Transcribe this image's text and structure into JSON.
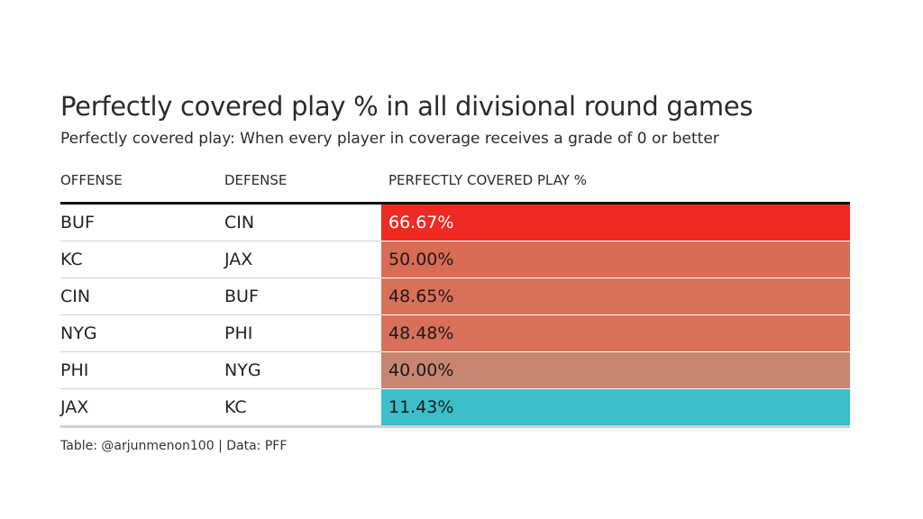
{
  "title": "Perfectly covered play % in all divisional round games",
  "subtitle": "Perfectly covered play: When every player in coverage receives a grade of 0 or better",
  "footer": "Table: @arjunmenon100 | Data: PFF",
  "chart_data": {
    "type": "table",
    "columns": [
      "OFFENSE",
      "DEFENSE",
      "PERFECTLY COVERED PLAY %"
    ],
    "rows": [
      {
        "offense": "BUF",
        "defense": "CIN",
        "pct": "66.67%",
        "value": 66.67,
        "color": "#ee2a22",
        "text_color": "#ffffff"
      },
      {
        "offense": "KC",
        "defense": "JAX",
        "pct": "50.00%",
        "value": 50.0,
        "color": "#d96c55",
        "text_color": "#1a1a1a"
      },
      {
        "offense": "CIN",
        "defense": "BUF",
        "pct": "48.65%",
        "value": 48.65,
        "color": "#d9705a",
        "text_color": "#1a1a1a"
      },
      {
        "offense": "NYG",
        "defense": "PHI",
        "pct": "48.48%",
        "value": 48.48,
        "color": "#d9705a",
        "text_color": "#1a1a1a"
      },
      {
        "offense": "PHI",
        "defense": "NYG",
        "pct": "40.00%",
        "value": 40.0,
        "color": "#c68672",
        "text_color": "#1a1a1a"
      },
      {
        "offense": "JAX",
        "defense": "KC",
        "pct": "11.43%",
        "value": 11.43,
        "color": "#3cbfc9",
        "text_color": "#1a1a1a"
      }
    ]
  }
}
